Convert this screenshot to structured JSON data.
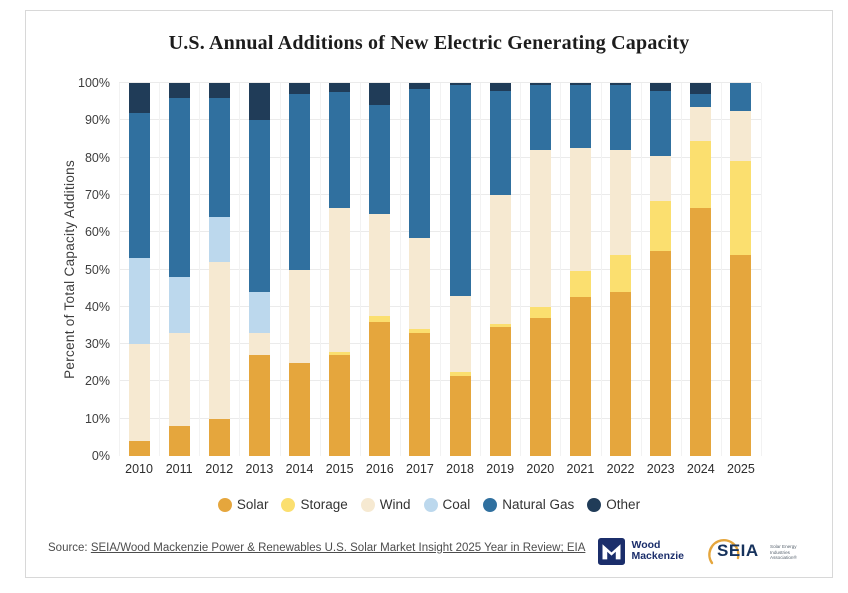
{
  "title": "U.S. Annual Additions of New Electric Generating Capacity",
  "chart_data": {
    "type": "bar",
    "stacked": true,
    "unit": "percent of total capacity additions",
    "title": "U.S. Annual Additions of New Electric Generating Capacity",
    "xlabel": "",
    "ylabel": "Percent of Total Capacity Additions",
    "ylim": [
      0,
      100
    ],
    "grid": true,
    "legend_position": "bottom",
    "y_ticks": [
      "0%",
      "10%",
      "20%",
      "30%",
      "40%",
      "50%",
      "60%",
      "70%",
      "80%",
      "90%",
      "100%"
    ],
    "categories": [
      "2010",
      "2011",
      "2012",
      "2013",
      "2014",
      "2015",
      "2016",
      "2017",
      "2018",
      "2019",
      "2020",
      "2021",
      "2022",
      "2023",
      "2024",
      "2025"
    ],
    "series": [
      {
        "name": "Solar",
        "color": "#E5A63D",
        "values": [
          4,
          8,
          10,
          27,
          25,
          27,
          36,
          33,
          21.5,
          34.5,
          37,
          42.5,
          44,
          55,
          66.5,
          54
        ]
      },
      {
        "name": "Storage",
        "color": "#FBDF6F",
        "values": [
          0,
          0,
          0,
          0,
          0,
          1,
          1.5,
          1,
          1,
          1,
          3,
          7,
          10,
          13.5,
          18,
          25
        ]
      },
      {
        "name": "Wind",
        "color": "#F6E9D1",
        "values": [
          26,
          25,
          42,
          6,
          25,
          38.5,
          27.5,
          24.5,
          20.5,
          34.5,
          42,
          33,
          28,
          12,
          9,
          13.5
        ]
      },
      {
        "name": "Coal",
        "color": "#BCD8ED",
        "values": [
          23,
          15,
          12,
          11,
          0,
          0,
          0,
          0,
          0,
          0,
          0,
          0,
          0,
          0,
          0,
          0
        ]
      },
      {
        "name": "Natural Gas",
        "color": "#30709F",
        "values": [
          39,
          48,
          32,
          46,
          47,
          31,
          29,
          40,
          56.5,
          28,
          17.5,
          17,
          17.5,
          17.5,
          3.5,
          7.5
        ]
      },
      {
        "name": "Other",
        "color": "#203C58",
        "values": [
          8,
          4,
          4,
          10,
          3,
          2.5,
          6,
          1.5,
          0.5,
          2,
          0.5,
          0.5,
          0.5,
          2,
          3,
          0
        ]
      }
    ]
  },
  "source": {
    "prefix": "Source:",
    "link_text": "SEIA/Wood Mackenzie Power & Renewables U.S. Solar Market Insight 2025 Year in Review; EIA"
  },
  "logos": {
    "wood_mackenzie": {
      "line1": "Wood",
      "line2": "Mackenzie"
    },
    "seia": {
      "name": "SEIA",
      "tagline_line1": "Solar Energy",
      "tagline_line2": "Industries",
      "tagline_line3": "Association®"
    }
  },
  "colors": {
    "frame_border": "#d8d8d8",
    "gridline": "#ebebeb",
    "title_text": "#1c1c1c",
    "axis_text": "#3d3d3d",
    "source_text": "#4d4d4d",
    "wm_navy": "#1b2e6b",
    "seia_navy": "#16325c",
    "seia_gold": "#E5A63D"
  }
}
